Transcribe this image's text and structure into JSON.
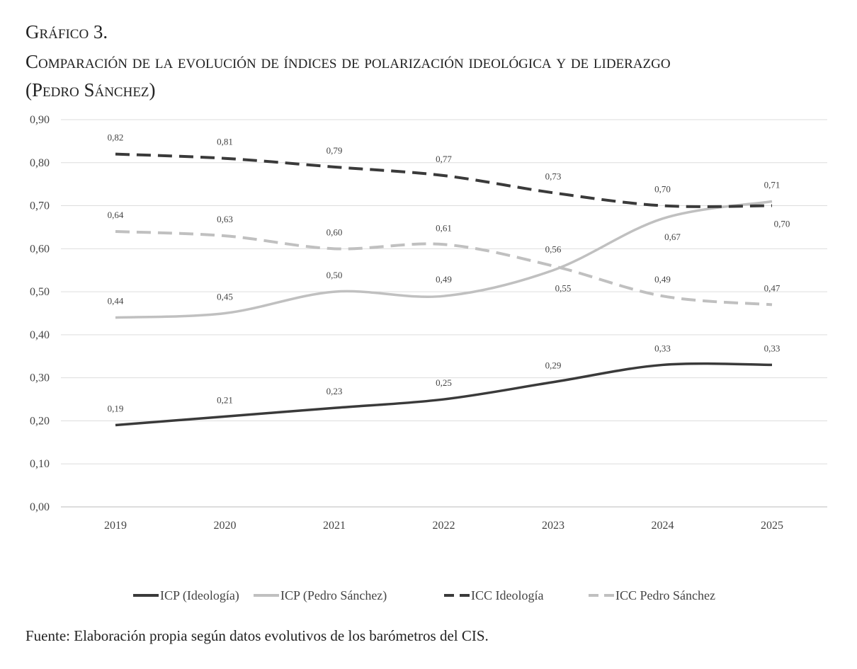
{
  "figure": {
    "label": "Gráfico 3.",
    "title_line1": "Comparación de la evolución de índices de polarización ideológica y de liderazgo",
    "title_line2": "(Pedro Sánchez)",
    "source": "Fuente: Elaboración propia según datos evolutivos de los barómetros del CIS."
  },
  "chart_data": {
    "type": "line",
    "x": [
      "2019",
      "2020",
      "2021",
      "2022",
      "2023",
      "2024",
      "2025"
    ],
    "ylim": [
      0,
      0.9
    ],
    "yticks": [
      "0,00",
      "0,10",
      "0,20",
      "0,30",
      "0,40",
      "0,50",
      "0,60",
      "0,70",
      "0,80",
      "0,90"
    ],
    "grid": true,
    "legend_position": "bottom",
    "series": [
      {
        "name": "ICP (Ideología)",
        "values": [
          0.19,
          0.21,
          0.23,
          0.25,
          0.29,
          0.33,
          0.33
        ],
        "labels": [
          "0,19",
          "0,21",
          "0,23",
          "0,25",
          "0,29",
          "0,33",
          "0,33"
        ],
        "color": "#3a3a3a",
        "dashed": false
      },
      {
        "name": "ICP (Pedro Sánchez)",
        "values": [
          0.44,
          0.45,
          0.5,
          0.49,
          0.55,
          0.67,
          0.71
        ],
        "labels": [
          "0,44",
          "0,45",
          "0,50",
          "0,49",
          "0,55",
          "0,67",
          "0,71"
        ],
        "color": "#c0c0c0",
        "dashed": false
      },
      {
        "name": "ICC  Ideología",
        "values": [
          0.82,
          0.81,
          0.79,
          0.77,
          0.73,
          0.7,
          0.7
        ],
        "labels": [
          "0,82",
          "0,81",
          "0,79",
          "0,77",
          "0,73",
          "0,70",
          "0,70"
        ],
        "color": "#3a3a3a",
        "dashed": true
      },
      {
        "name": "ICC Pedro Sánchez",
        "values": [
          0.64,
          0.63,
          0.6,
          0.61,
          0.56,
          0.49,
          0.47
        ],
        "labels": [
          "0,64",
          "0,63",
          "0,60",
          "0,61",
          "0,56",
          "0,49",
          "0,47"
        ],
        "color": "#c0c0c0",
        "dashed": true
      }
    ]
  }
}
